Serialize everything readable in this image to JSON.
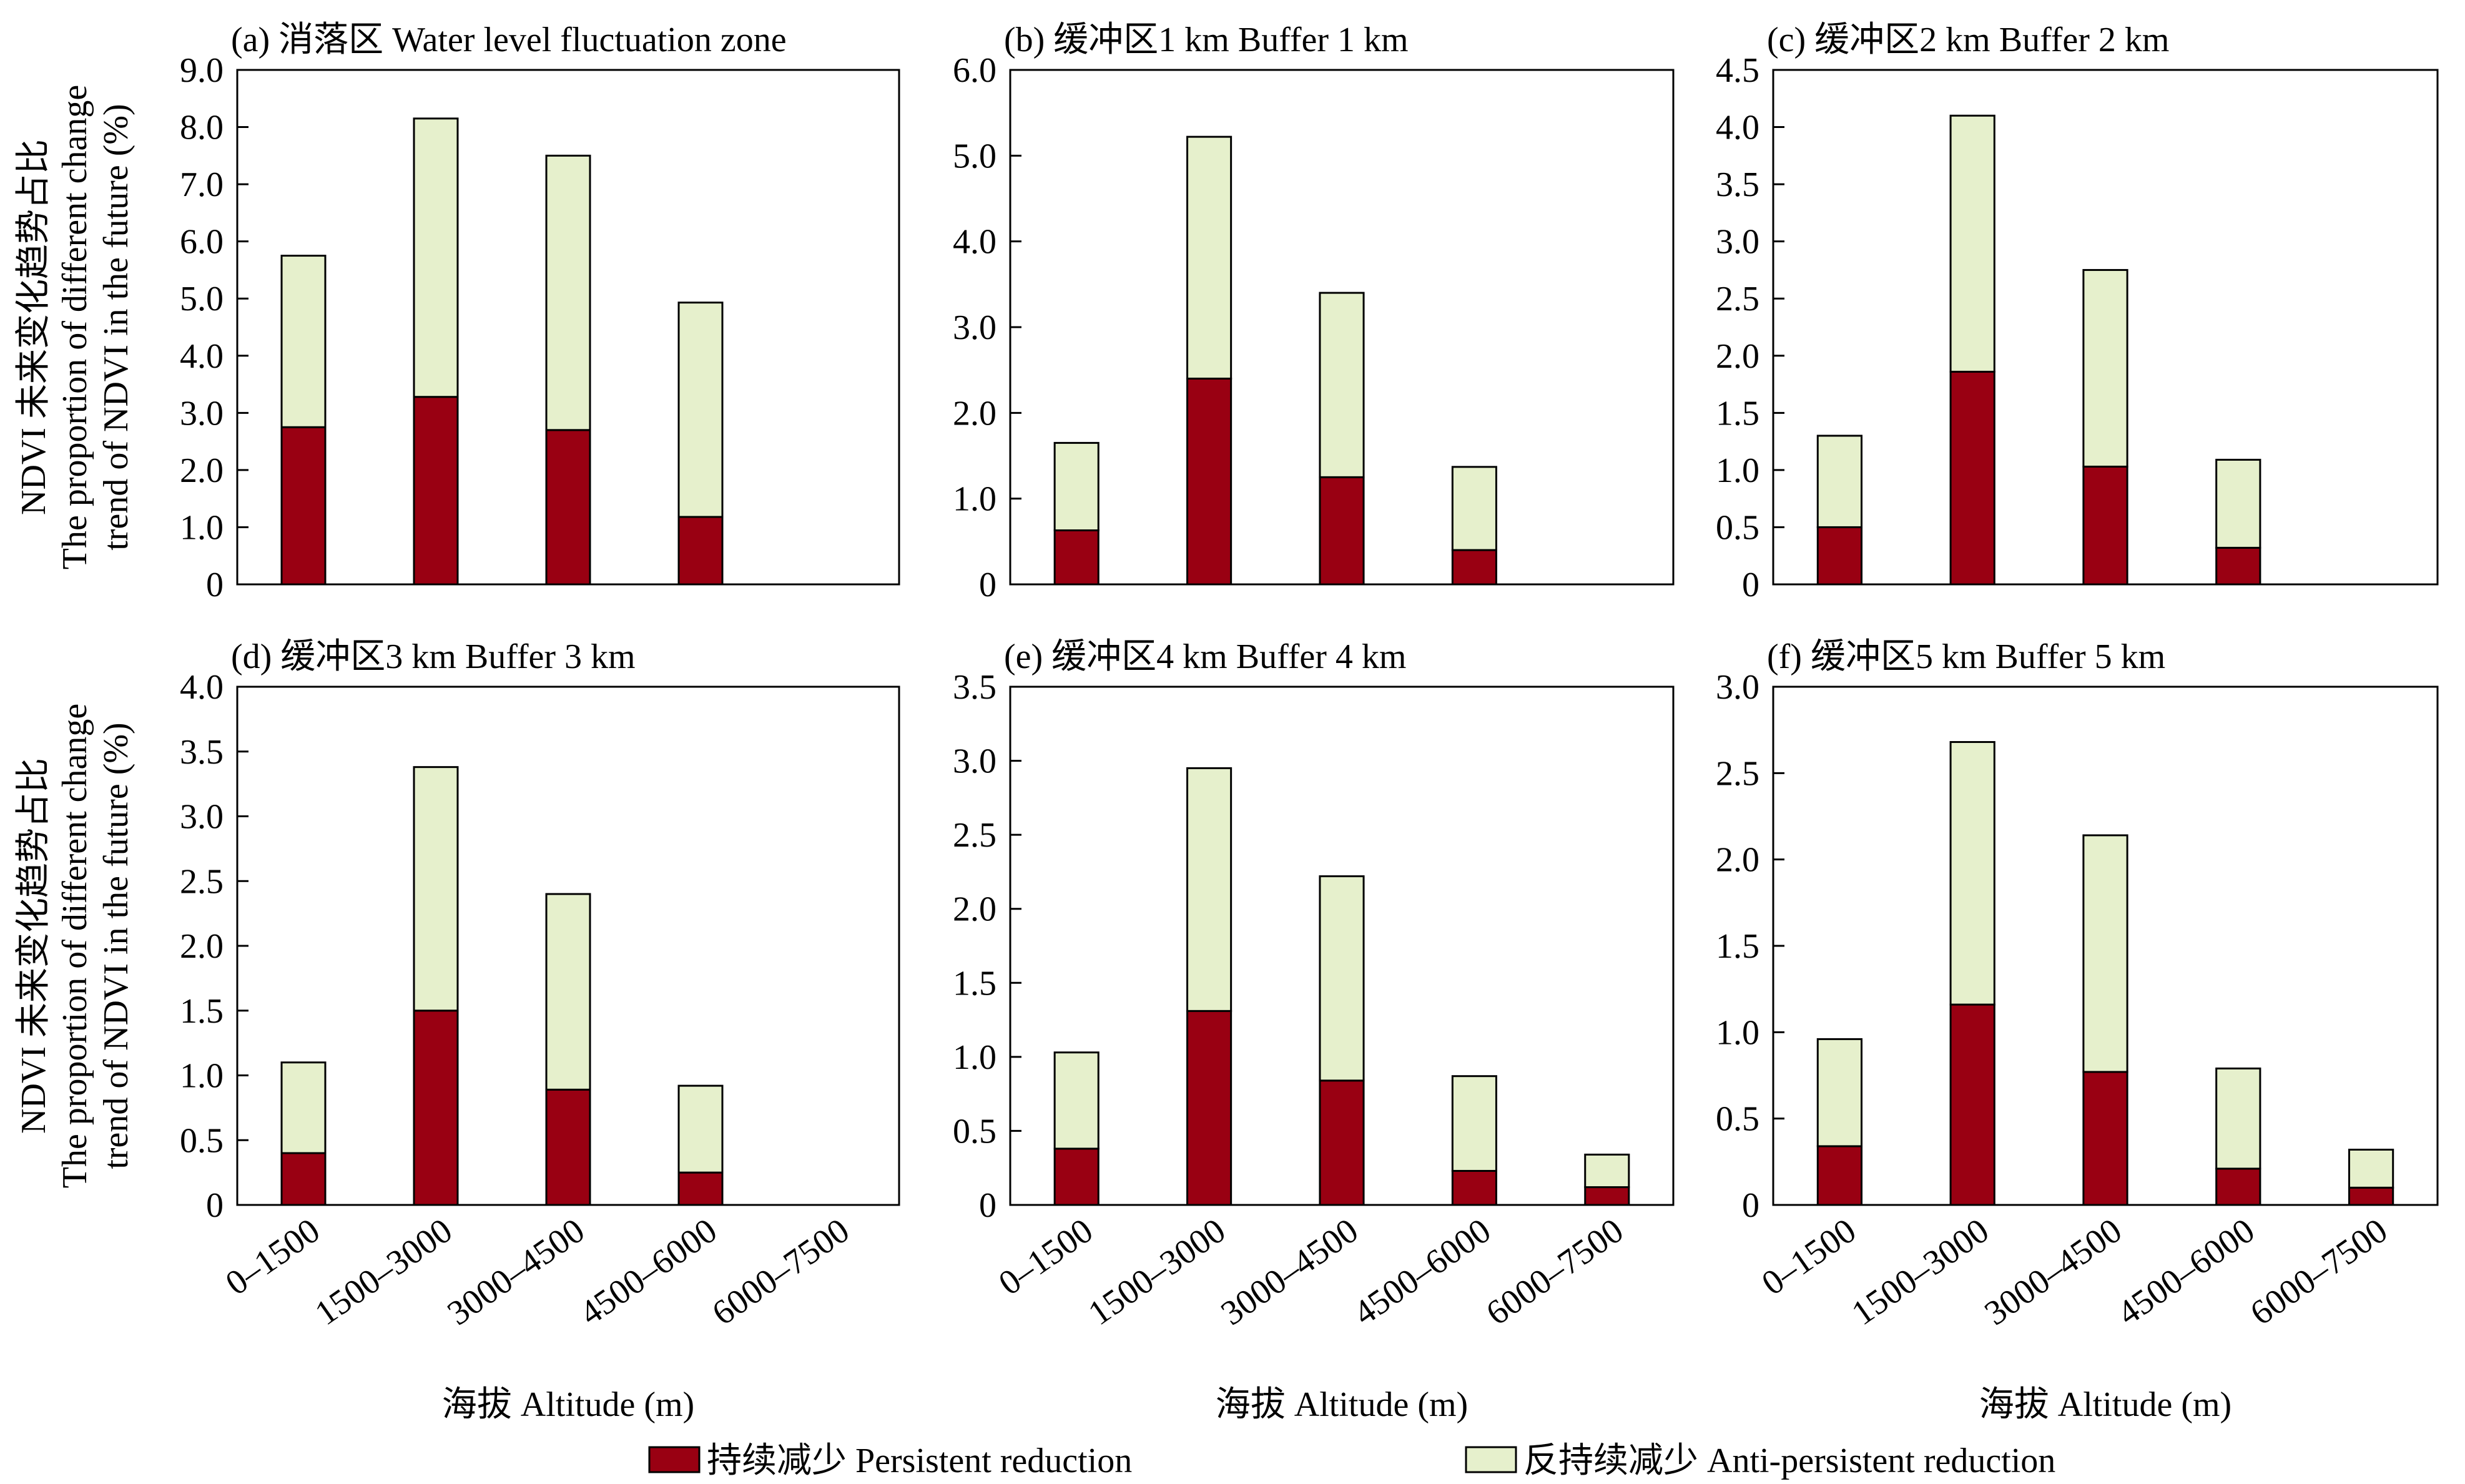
{
  "chart_data": [
    {
      "type": "bar",
      "stacked": true,
      "title": "(a) 消落区 Water level fluctuation zone",
      "categories": [
        "0–1500",
        "1500–3000",
        "3000–4500",
        "4500–6000",
        "6000–7500"
      ],
      "series": [
        {
          "name": "持续减少 Persistent reduction",
          "values": [
            2.75,
            3.28,
            2.7,
            1.18,
            0
          ]
        },
        {
          "name": "反持续减少 Anti-persistent reduction",
          "values": [
            3.0,
            4.87,
            4.8,
            3.75,
            0
          ]
        }
      ],
      "ylim": [
        0,
        9.0
      ],
      "yticks": [
        "0",
        "1.0",
        "2.0",
        "3.0",
        "4.0",
        "5.0",
        "6.0",
        "7.0",
        "8.0",
        "9.0"
      ],
      "ylabel": [
        "NDVI 未来变化趋势占比",
        "The proportion of different change",
        "trend of NDVI in the future (%)"
      ],
      "xlabel": ""
    },
    {
      "type": "bar",
      "stacked": true,
      "title": "(b) 缓冲区1 km Buffer 1 km",
      "categories": [
        "0–1500",
        "1500–3000",
        "3000–4500",
        "4500–6000",
        "6000–7500"
      ],
      "series": [
        {
          "name": "持续减少 Persistent reduction",
          "values": [
            0.63,
            2.4,
            1.25,
            0.4,
            0
          ]
        },
        {
          "name": "反持续减少 Anti-persistent reduction",
          "values": [
            1.02,
            2.82,
            2.15,
            0.97,
            0
          ]
        }
      ],
      "ylim": [
        0,
        6.0
      ],
      "yticks": [
        "0",
        "1.0",
        "2.0",
        "3.0",
        "4.0",
        "5.0",
        "6.0"
      ],
      "ylabel": [],
      "xlabel": ""
    },
    {
      "type": "bar",
      "stacked": true,
      "title": "(c) 缓冲区2 km Buffer 2 km",
      "categories": [
        "0–1500",
        "1500–3000",
        "3000–4500",
        "4500–6000",
        "6000–7500"
      ],
      "series": [
        {
          "name": "持续减少 Persistent reduction",
          "values": [
            0.5,
            1.86,
            1.03,
            0.32,
            0
          ]
        },
        {
          "name": "反持续减少 Anti-persistent reduction",
          "values": [
            0.8,
            2.24,
            1.72,
            0.77,
            0
          ]
        }
      ],
      "ylim": [
        0,
        4.5
      ],
      "yticks": [
        "0",
        "0.5",
        "1.0",
        "1.5",
        "2.0",
        "2.5",
        "3.0",
        "3.5",
        "4.0",
        "4.5"
      ],
      "ylabel": [],
      "xlabel": ""
    },
    {
      "type": "bar",
      "stacked": true,
      "title": "(d) 缓冲区3 km Buffer 3 km",
      "categories": [
        "0–1500",
        "1500–3000",
        "3000–4500",
        "4500–6000",
        "6000–7500"
      ],
      "series": [
        {
          "name": "持续减少 Persistent reduction",
          "values": [
            0.4,
            1.5,
            0.89,
            0.25,
            0
          ]
        },
        {
          "name": "反持续减少 Anti-persistent reduction",
          "values": [
            0.7,
            1.88,
            1.51,
            0.67,
            0
          ]
        }
      ],
      "ylim": [
        0,
        4.0
      ],
      "yticks": [
        "0",
        "0.5",
        "1.0",
        "1.5",
        "2.0",
        "2.5",
        "3.0",
        "3.5",
        "4.0"
      ],
      "ylabel": [
        "NDVI 未来变化趋势占比",
        "The proportion of different change",
        "trend of NDVI in the future (%)"
      ],
      "xlabel": "海拔 Altitude (m)"
    },
    {
      "type": "bar",
      "stacked": true,
      "title": "(e) 缓冲区4 km Buffer 4 km",
      "categories": [
        "0–1500",
        "1500–3000",
        "3000–4500",
        "4500–6000",
        "6000–7500"
      ],
      "series": [
        {
          "name": "持续减少 Persistent reduction",
          "values": [
            0.38,
            1.31,
            0.84,
            0.23,
            0.12
          ]
        },
        {
          "name": "反持续减少 Anti-persistent reduction",
          "values": [
            0.65,
            1.64,
            1.38,
            0.64,
            0.22
          ]
        }
      ],
      "ylim": [
        0,
        3.5
      ],
      "yticks": [
        "0",
        "0.5",
        "1.0",
        "1.5",
        "2.0",
        "2.5",
        "3.0",
        "3.5"
      ],
      "ylabel": [],
      "xlabel": "海拔 Altitude (m)"
    },
    {
      "type": "bar",
      "stacked": true,
      "title": "(f) 缓冲区5 km Buffer 5 km",
      "categories": [
        "0–1500",
        "1500–3000",
        "3000–4500",
        "4500–6000",
        "6000–7500"
      ],
      "series": [
        {
          "name": "持续减少 Persistent reduction",
          "values": [
            0.34,
            1.16,
            0.77,
            0.21,
            0.1
          ]
        },
        {
          "name": "反持续减少 Anti-persistent reduction",
          "values": [
            0.62,
            1.52,
            1.37,
            0.58,
            0.22
          ]
        }
      ],
      "ylim": [
        0,
        3.0
      ],
      "yticks": [
        "0",
        "0.5",
        "1.0",
        "1.5",
        "2.0",
        "2.5",
        "3.0"
      ],
      "ylabel": [],
      "xlabel": "海拔 Altitude (m)"
    }
  ],
  "legend": {
    "items": [
      {
        "label": "持续减少 Persistent reduction",
        "color": "#990012"
      },
      {
        "label": "反持续减少 Anti-persistent reduction",
        "color": "#e6f0cc"
      }
    ],
    "placement": "bottom-center"
  },
  "colors": {
    "persistent": "#990012",
    "anti_persistent": "#e6f0cc",
    "outline": "#000000"
  }
}
